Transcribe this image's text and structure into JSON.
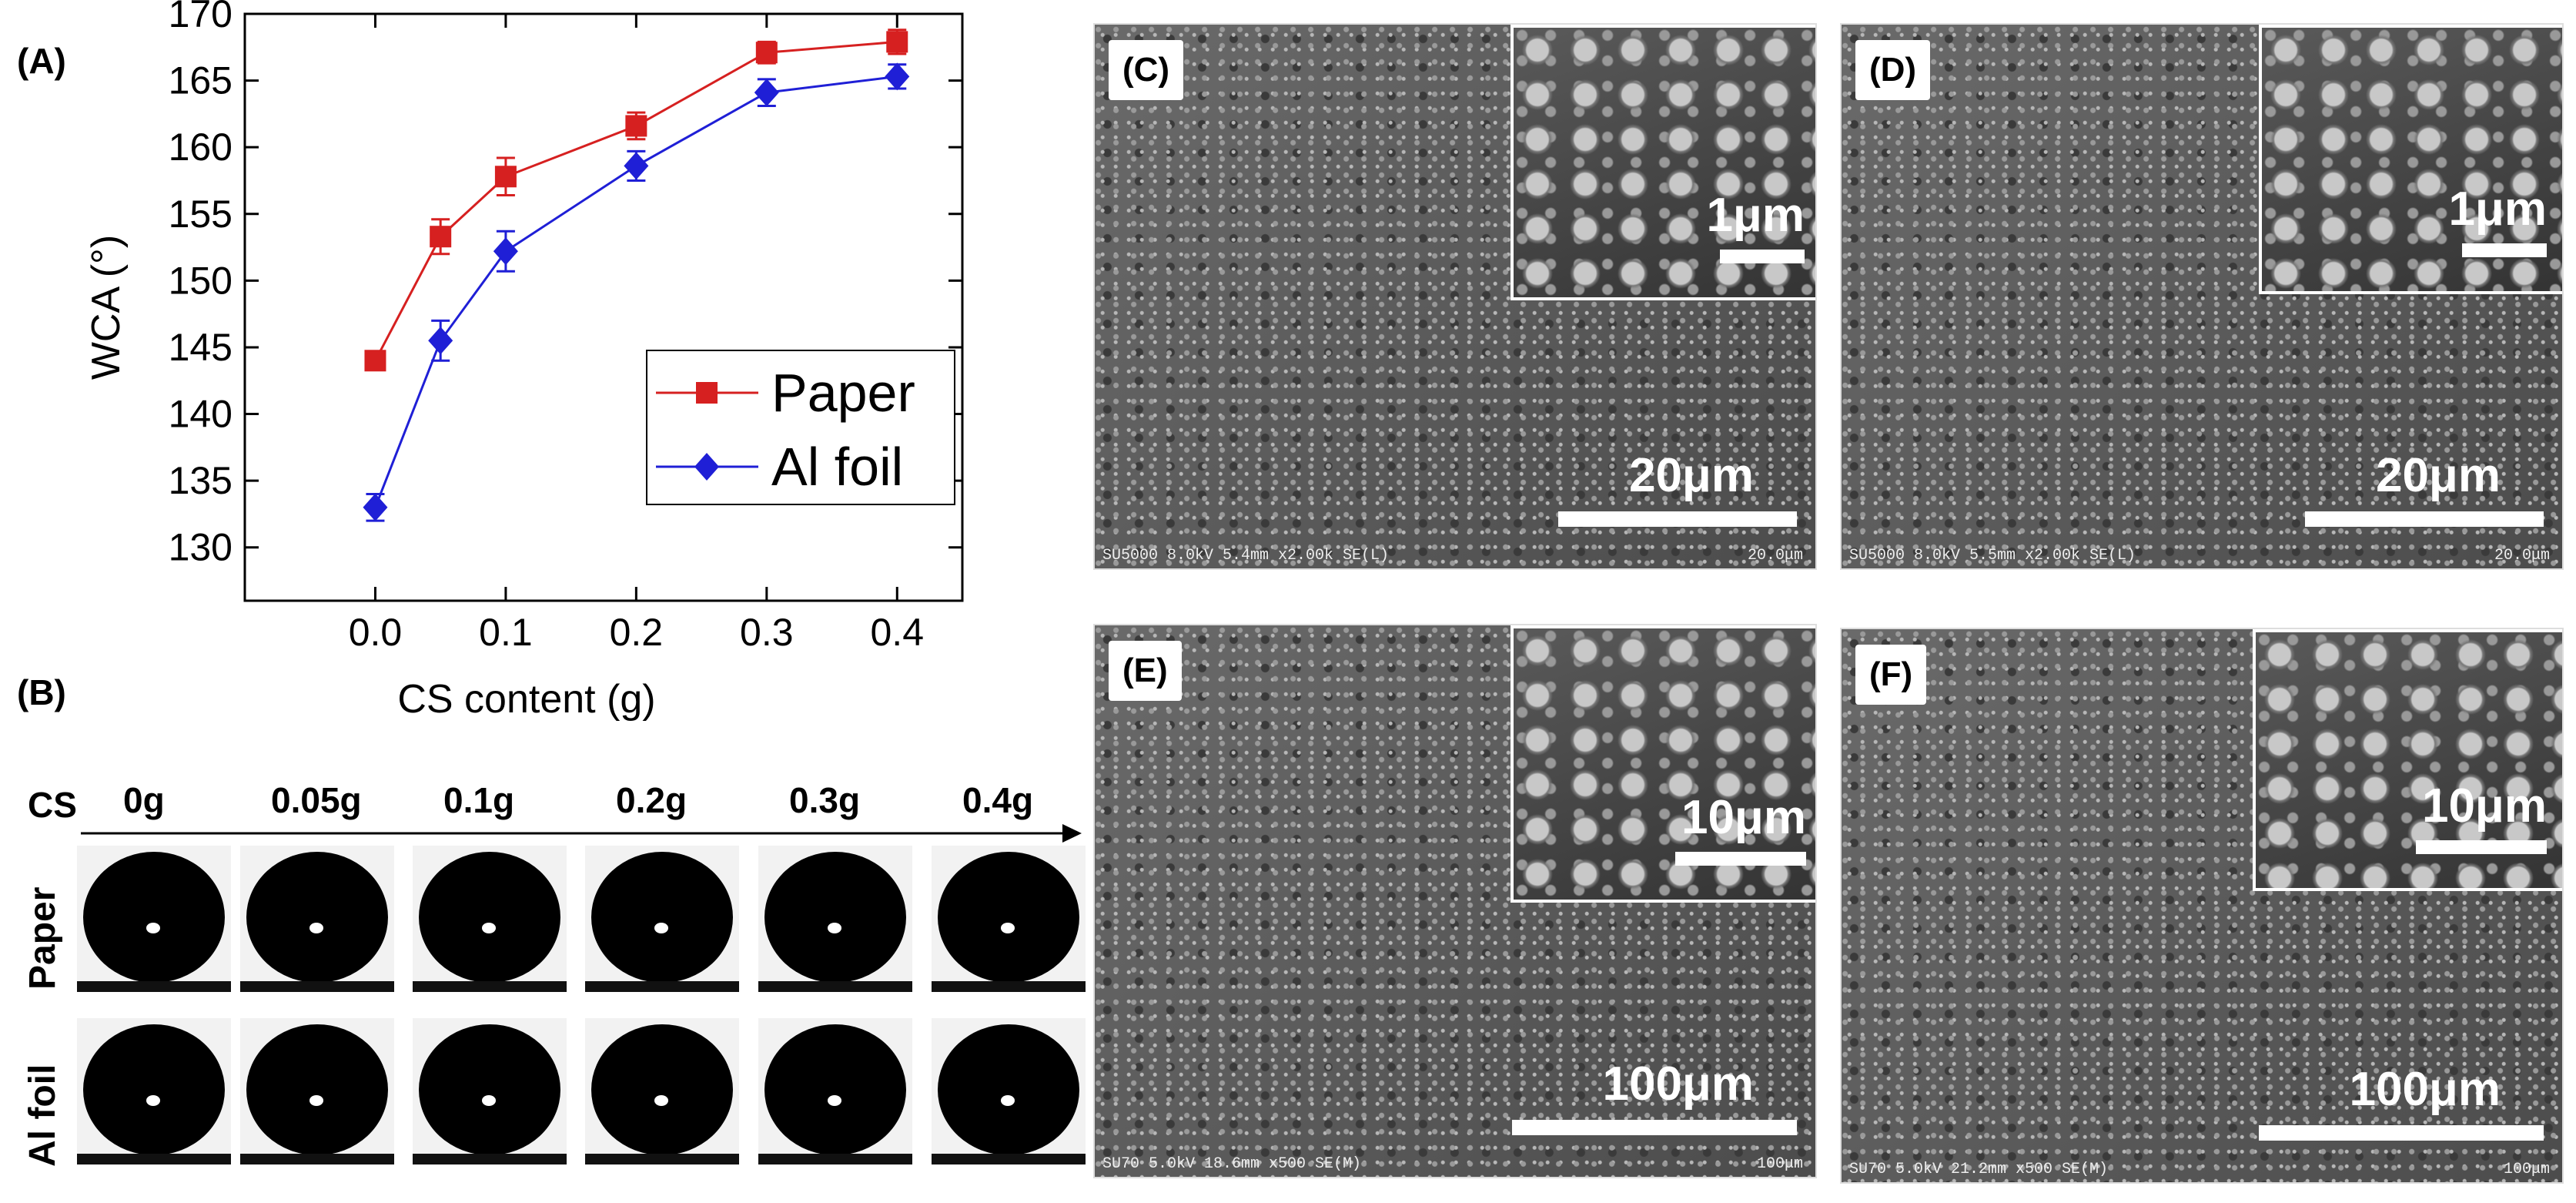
{
  "panels": {
    "a": "(A)",
    "b": "(B)",
    "c": "(C)",
    "d": "(D)",
    "e": "(E)",
    "f": "(F)"
  },
  "chart_data": {
    "type": "line",
    "xlabel": "CS content (g)",
    "ylabel": "WCA (°)",
    "xlim": [
      -0.1,
      0.45
    ],
    "ylim": [
      126,
      170
    ],
    "x_ticks": [
      "0.0",
      "0.1",
      "0.2",
      "0.3",
      "0.4"
    ],
    "y_ticks": [
      "130",
      "135",
      "140",
      "145",
      "150",
      "155",
      "160",
      "165",
      "170"
    ],
    "legend_position": "lower-right",
    "series": [
      {
        "name": "Paper",
        "color": "#d62020",
        "marker": "square",
        "x": [
          0.0,
          0.05,
          0.1,
          0.2,
          0.3,
          0.4
        ],
        "y": [
          144.0,
          153.3,
          157.8,
          161.6,
          167.1,
          167.9
        ],
        "err": [
          0.7,
          1.3,
          1.4,
          1.0,
          0.8,
          0.9
        ]
      },
      {
        "name": "Al foil",
        "color": "#1f1fd6",
        "marker": "diamond",
        "x": [
          0.0,
          0.05,
          0.1,
          0.2,
          0.3,
          0.4
        ],
        "y": [
          133.0,
          145.5,
          152.2,
          158.6,
          164.1,
          165.3
        ],
        "err": [
          1.0,
          1.5,
          1.5,
          1.1,
          1.0,
          0.9
        ]
      }
    ]
  },
  "drops": {
    "cs_header": "CS",
    "cs_amounts": [
      "0g",
      "0.05g",
      "0.1g",
      "0.2g",
      "0.3g",
      "0.4g"
    ],
    "row_labels": [
      "Paper",
      "Al foil"
    ]
  },
  "sem": [
    {
      "label": "(C)",
      "scale_main": "20μm",
      "scale_inset": "1μm",
      "footer_left": "SU5000 8.0kV 5.4mm x2.00k SE(L)",
      "footer_right": "20.0μm"
    },
    {
      "label": "(D)",
      "scale_main": "20μm",
      "scale_inset": "1μm",
      "footer_left": "SU5000 8.0kV 5.5mm x2.00k SE(L)",
      "footer_right": "20.0μm"
    },
    {
      "label": "(E)",
      "scale_main": "100μm",
      "scale_inset": "10μm",
      "footer_left": "SU70 5.0kV 18.6mm x500 SE(M)",
      "footer_right": "100μm"
    },
    {
      "label": "(F)",
      "scale_main": "100μm",
      "scale_inset": "10μm",
      "footer_left": "SU70 5.0kV 21.2mm x500 SE(M)",
      "footer_right": "100μm"
    }
  ]
}
